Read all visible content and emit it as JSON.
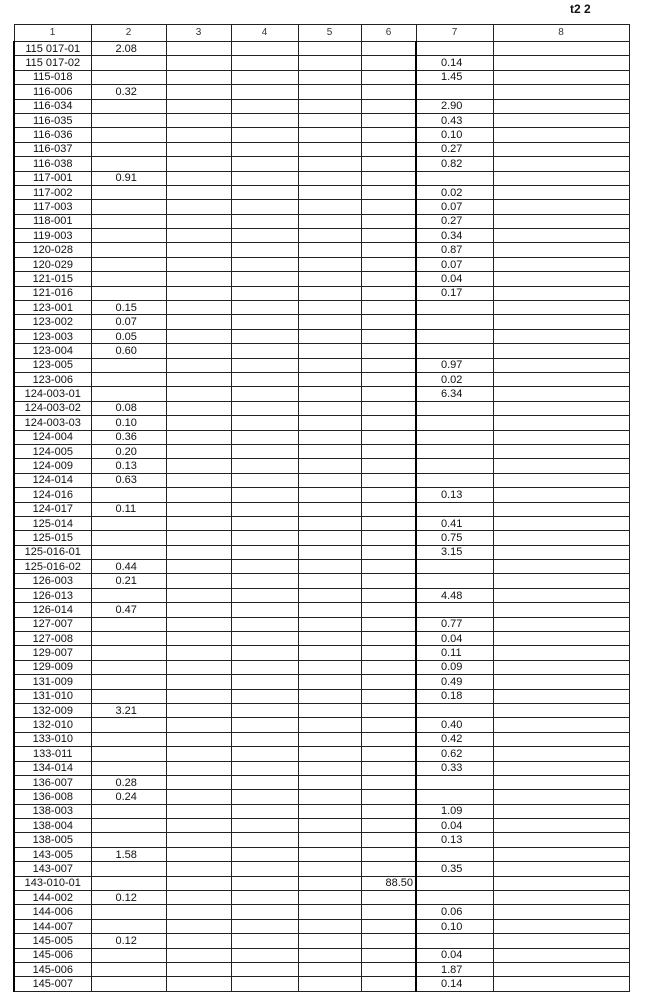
{
  "page_mark": "t2 2",
  "columns": [
    "1",
    "2",
    "3",
    "4",
    "5",
    "6",
    "7",
    "8"
  ],
  "rows": [
    {
      "id": "115 017-01",
      "c2": "2.08"
    },
    {
      "id": "115 017-02",
      "c7": "0.14"
    },
    {
      "id": "115-018",
      "c7": "1.45"
    },
    {
      "id": "116-006",
      "c2": "0.32"
    },
    {
      "id": "116-034",
      "c7": "2.90"
    },
    {
      "id": "116-035",
      "c7": "0.43"
    },
    {
      "id": "116-036",
      "c7": "0.10"
    },
    {
      "id": "116-037",
      "c7": "0.27"
    },
    {
      "id": "116-038",
      "c7": "0.82"
    },
    {
      "id": "117-001",
      "c2": "0.91"
    },
    {
      "id": "117-002",
      "c7": "0.02"
    },
    {
      "id": "117-003",
      "c7": "0.07"
    },
    {
      "id": "118-001",
      "c7": "0.27"
    },
    {
      "id": "119-003",
      "c7": "0.34"
    },
    {
      "id": "120-028",
      "c7": "0.87"
    },
    {
      "id": "120-029",
      "c7": "0.07"
    },
    {
      "id": "121-015",
      "c7": "0.04"
    },
    {
      "id": "121-016",
      "c7": "0.17"
    },
    {
      "id": "123-001",
      "c2": "0.15"
    },
    {
      "id": "123-002",
      "c2": "0.07"
    },
    {
      "id": "123-003",
      "c2": "0.05"
    },
    {
      "id": "123-004",
      "c2": "0.60"
    },
    {
      "id": "123-005",
      "c7": "0.97"
    },
    {
      "id": "123-006",
      "c7": "0.02"
    },
    {
      "id": "124-003-01",
      "c7": "6.34"
    },
    {
      "id": "124-003-02",
      "c2": "0.08"
    },
    {
      "id": "124-003-03",
      "c2": "0.10"
    },
    {
      "id": "124-004",
      "c2": "0.36"
    },
    {
      "id": "124-005",
      "c2": "0.20"
    },
    {
      "id": "124-009",
      "c2": "0.13"
    },
    {
      "id": "124-014",
      "c2": "0.63"
    },
    {
      "id": "124-016",
      "c7": "0.13"
    },
    {
      "id": "124-017",
      "c2": "0.11"
    },
    {
      "id": "125-014",
      "c7": "0.41"
    },
    {
      "id": "125-015",
      "c7": "0.75"
    },
    {
      "id": "125-016-01",
      "c7": "3.15"
    },
    {
      "id": "125-016-02",
      "c2": "0.44"
    },
    {
      "id": "126-003",
      "c2": "0.21"
    },
    {
      "id": "126-013",
      "c7": "4.48"
    },
    {
      "id": "126-014",
      "c2": "0.47"
    },
    {
      "id": "127-007",
      "c7": "0.77"
    },
    {
      "id": "127-008",
      "c7": "0.04"
    },
    {
      "id": "129-007",
      "c7": "0.11"
    },
    {
      "id": "129-009",
      "c7": "0.09"
    },
    {
      "id": "131-009",
      "c7": "0.49"
    },
    {
      "id": "131-010",
      "c7": "0.18"
    },
    {
      "id": "132-009",
      "c2": "3.21"
    },
    {
      "id": "132-010",
      "c7": "0.40"
    },
    {
      "id": "133-010",
      "c7": "0.42"
    },
    {
      "id": "133-011",
      "c7": "0.62"
    },
    {
      "id": "134-014",
      "c7": "0.33"
    },
    {
      "id": "136-007",
      "c2": "0.28"
    },
    {
      "id": "136-008",
      "c2": "0.24"
    },
    {
      "id": "138-003",
      "c7": "1.09"
    },
    {
      "id": "138-004",
      "c7": "0.04"
    },
    {
      "id": "138-005",
      "c7": "0.13"
    },
    {
      "id": "143-005",
      "c2": "1.58"
    },
    {
      "id": "143-007",
      "c7": "0.35"
    },
    {
      "id": "143-010-01",
      "c6": "88.50"
    },
    {
      "id": "144-002",
      "c2": "0.12"
    },
    {
      "id": "144-006",
      "c7": "0.06"
    },
    {
      "id": "144-007",
      "c7": "0.10"
    },
    {
      "id": "145-005",
      "c2": "0.12"
    },
    {
      "id": "145-006",
      "c7": "0.04"
    },
    {
      "id": "145-006",
      "c7": "1.87"
    },
    {
      "id": "145-007",
      "c7": "0.14"
    }
  ]
}
